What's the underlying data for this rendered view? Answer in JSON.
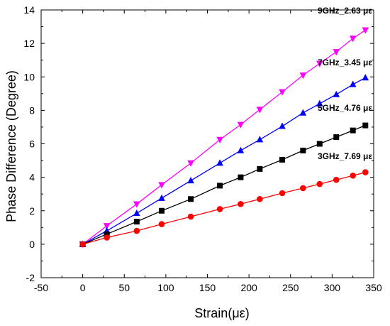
{
  "chart_data": {
    "type": "line",
    "xlabel": "Strain(με)",
    "ylabel": "Phase Difference (Degree)",
    "xlim": [
      -50,
      350
    ],
    "ylim": [
      -2,
      14
    ],
    "xticks": [
      -50,
      0,
      50,
      100,
      150,
      200,
      250,
      300,
      350
    ],
    "yticks": [
      -2,
      0,
      2,
      4,
      6,
      8,
      10,
      12,
      14
    ],
    "grid": false,
    "legend": "none",
    "series": [
      {
        "label": "9GHz_2.63 με",
        "marker": "triangle-down",
        "color": "#ff00ff",
        "x": [
          0,
          29,
          65,
          95,
          130,
          165,
          190,
          213,
          240,
          265,
          285,
          305,
          325,
          340
        ],
        "y": [
          0,
          1.1,
          2.4,
          3.55,
          4.85,
          6.25,
          7.15,
          8.05,
          9.1,
          10.1,
          10.8,
          11.5,
          12.3,
          12.8
        ]
      },
      {
        "label": "7GHz_3.45 με",
        "marker": "triangle-up",
        "color": "#0000ff",
        "x": [
          0,
          29,
          65,
          95,
          130,
          165,
          190,
          213,
          240,
          265,
          285,
          305,
          325,
          340
        ],
        "y": [
          0,
          0.8,
          1.85,
          2.75,
          3.8,
          4.85,
          5.6,
          6.25,
          7.05,
          7.85,
          8.4,
          8.95,
          9.55,
          9.95
        ]
      },
      {
        "label": "5GHz_4.76 με",
        "marker": "square",
        "color": "#000000",
        "x": [
          0,
          29,
          65,
          95,
          130,
          165,
          190,
          213,
          240,
          265,
          285,
          305,
          325,
          340
        ],
        "y": [
          0,
          0.6,
          1.35,
          2.0,
          2.7,
          3.5,
          4.0,
          4.5,
          5.05,
          5.6,
          6.0,
          6.4,
          6.8,
          7.1
        ]
      },
      {
        "label": "3GHz_7.69 με",
        "marker": "circle",
        "color": "#ff0000",
        "x": [
          0,
          29,
          65,
          95,
          130,
          165,
          190,
          213,
          240,
          265,
          285,
          305,
          325,
          340
        ],
        "y": [
          0,
          0.4,
          0.8,
          1.2,
          1.65,
          2.1,
          2.4,
          2.7,
          3.05,
          3.35,
          3.6,
          3.85,
          4.1,
          4.3
        ]
      }
    ]
  }
}
